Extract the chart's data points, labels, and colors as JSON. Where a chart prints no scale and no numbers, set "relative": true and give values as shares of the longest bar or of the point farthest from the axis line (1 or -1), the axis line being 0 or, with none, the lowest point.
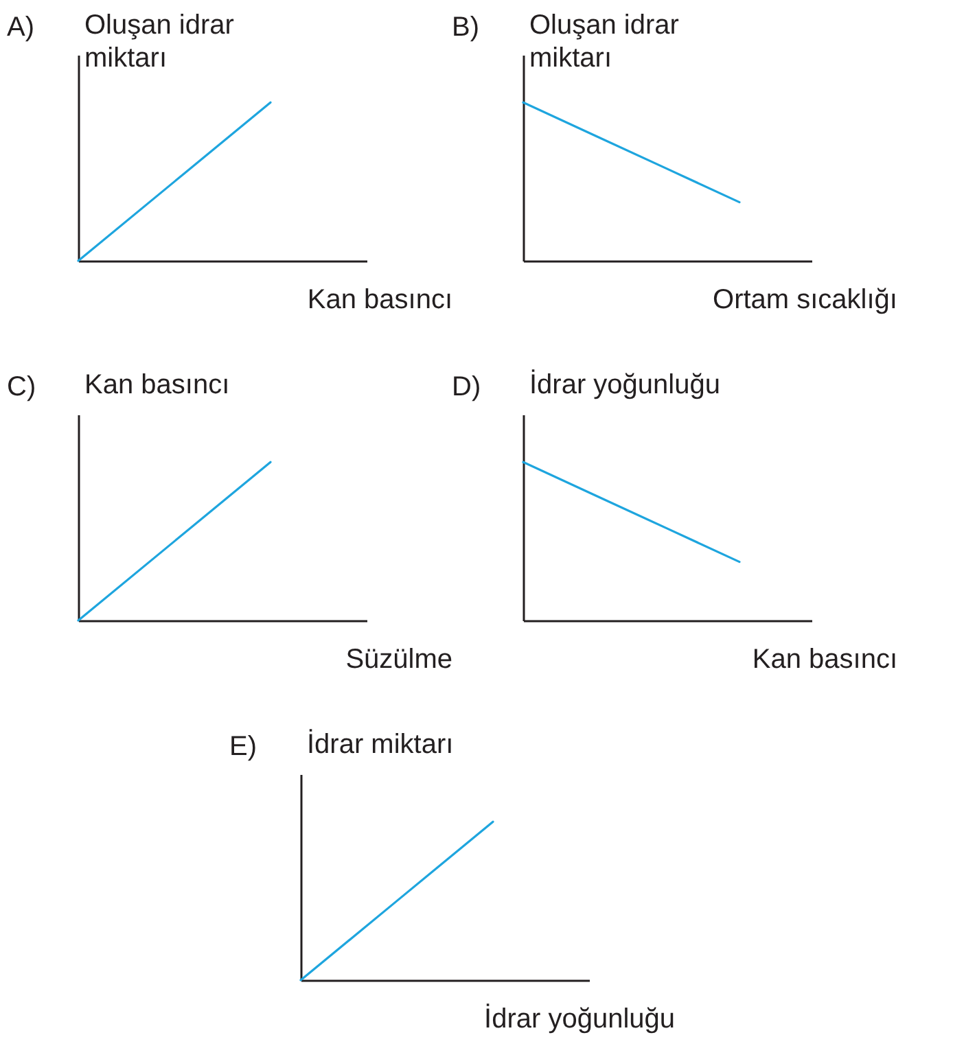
{
  "chart_data": [
    {
      "type": "line",
      "title": "A)",
      "ylabel": "Oluşan idrar miktarı",
      "xlabel": "Kan basıncı",
      "relative": true,
      "color": "#1ea5de",
      "categories": [
        null,
        null,
        null,
        null
      ],
      "values": [
        0,
        0.5,
        1,
        null
      ]
    },
    {
      "type": "line",
      "title": "B)",
      "ylabel": "Oluşan idrar miktarı",
      "xlabel": "Ortam sıcaklığı",
      "relative": true,
      "color": "#1ea5de",
      "categories": [
        null,
        null,
        null,
        null,
        null
      ],
      "values": [
        1,
        0.79,
        0.58,
        0.37,
        null
      ]
    },
    {
      "type": "line",
      "title": "C)",
      "ylabel": "Kan basıncı",
      "xlabel": "Süzülme",
      "relative": true,
      "color": "#1ea5de",
      "categories": [
        null,
        null,
        null,
        null
      ],
      "values": [
        0,
        0.5,
        1,
        null
      ]
    },
    {
      "type": "line",
      "title": "D)",
      "ylabel": "İdrar yoğunluğu",
      "xlabel": "Kan basıncı",
      "relative": true,
      "color": "#1ea5de",
      "categories": [
        null,
        null,
        null,
        null,
        null
      ],
      "values": [
        1,
        0.79,
        0.58,
        0.37,
        null
      ]
    },
    {
      "type": "line",
      "title": "E)",
      "ylabel": "İdrar miktarı",
      "xlabel": "İdrar yoğunluğu",
      "relative": true,
      "color": "#1ea5de",
      "categories": [
        null,
        null,
        null,
        null
      ],
      "values": [
        0,
        0.5,
        1,
        null
      ]
    }
  ]
}
